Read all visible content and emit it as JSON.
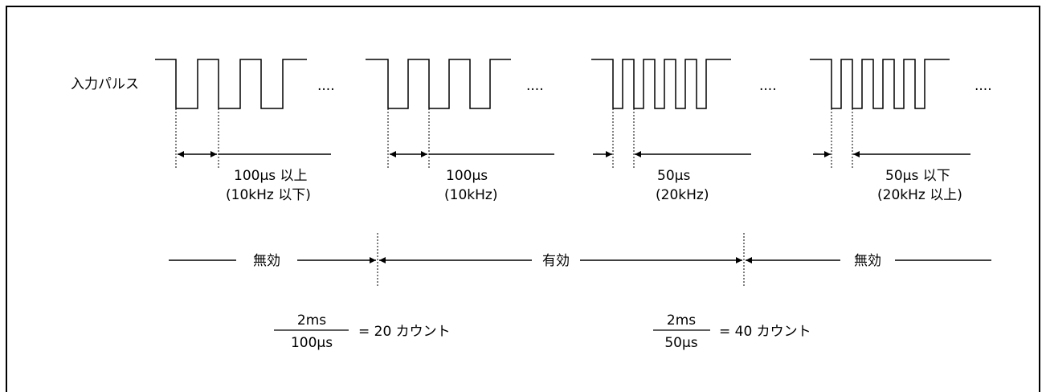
{
  "input_label": "入力パルス",
  "ellipsis": "....",
  "groups": [
    {
      "line1": "100μs 以上",
      "line2": "(10kHz 以下)"
    },
    {
      "line1": "100μs",
      "line2": "(10kHz)"
    },
    {
      "line1": "50μs",
      "line2": "(20kHz)"
    },
    {
      "line1": "50μs 以下",
      "line2": "(20kHz 以上)"
    }
  ],
  "regions": {
    "invalid_left": "無効",
    "valid": "有効",
    "invalid_right": "無効"
  },
  "formulas": [
    {
      "numerator": "2ms",
      "denominator": "100μs",
      "result": "= 20 カウント"
    },
    {
      "numerator": "2ms",
      "denominator": "50μs",
      "result": "= 40 カウント"
    }
  ]
}
